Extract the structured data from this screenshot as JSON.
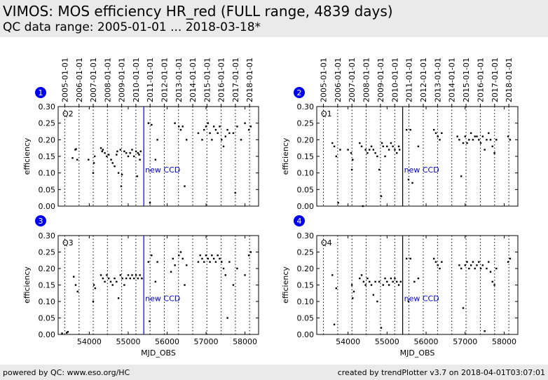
{
  "header": {
    "title": "VIMOS: MOS efficiency HR_red (FULL range, 4839 days)",
    "subtitle": "QC data range: 2005-01-01 ... 2018-03-18*"
  },
  "footer": {
    "left": "powered by QC: www.eso.org/HC",
    "right": "created by trendPlotter v3.7 on 2018-04-01T03:07:01"
  },
  "colors": {
    "points": "#000000",
    "marker": "#0000cc",
    "badge": "#0000ee",
    "panel_bg": "#ffffff"
  },
  "chart_data": {
    "type": "scatter",
    "xlabel": "MJD_OBS",
    "ylabel": "efficiency",
    "xlim": [
      53200,
      58350
    ],
    "ylim": [
      0.0,
      0.3
    ],
    "xticks": [
      54000,
      55000,
      56000,
      57000,
      58000
    ],
    "yticks": [
      "0.00",
      "0.05",
      "0.10",
      "0.15",
      "0.20",
      "0.25",
      "0.30"
    ],
    "year_ticks": [
      {
        "label": "2005-01-01",
        "mjd": 53371
      },
      {
        "label": "2006-01-01",
        "mjd": 53736
      },
      {
        "label": "2007-01-01",
        "mjd": 54101
      },
      {
        "label": "2008-01-01",
        "mjd": 54466
      },
      {
        "label": "2009-01-01",
        "mjd": 54832
      },
      {
        "label": "2010-01-01",
        "mjd": 55197
      },
      {
        "label": "2011-01-01",
        "mjd": 55562
      },
      {
        "label": "2012-01-01",
        "mjd": 55927
      },
      {
        "label": "2013-01-01",
        "mjd": 56293
      },
      {
        "label": "2014-01-01",
        "mjd": 56658
      },
      {
        "label": "2015-01-01",
        "mjd": 57023
      },
      {
        "label": "2016-01-01",
        "mjd": 57388
      },
      {
        "label": "2017-01-01",
        "mjd": 57754
      },
      {
        "label": "2018-01-01",
        "mjd": 58119
      }
    ],
    "marker_line": {
      "mjd": 55400,
      "label": "new CCD"
    },
    "panels": [
      {
        "badge": "1",
        "quadrant": "Q2",
        "points": [
          [
            53570,
            0.145
          ],
          [
            53640,
            0.17
          ],
          [
            53660,
            0.172
          ],
          [
            53690,
            0.14
          ],
          [
            53980,
            0.14
          ],
          [
            54100,
            0.1
          ],
          [
            54120,
            0.13
          ],
          [
            54140,
            0.15
          ],
          [
            54300,
            0.175
          ],
          [
            54330,
            0.165
          ],
          [
            54350,
            0.17
          ],
          [
            54400,
            0.16
          ],
          [
            54450,
            0.15
          ],
          [
            54500,
            0.155
          ],
          [
            54560,
            0.14
          ],
          [
            54600,
            0.13
          ],
          [
            54650,
            0.12
          ],
          [
            54700,
            0.155
          ],
          [
            54720,
            0.165
          ],
          [
            54750,
            0.1
          ],
          [
            54800,
            0.17
          ],
          [
            54820,
            0.06
          ],
          [
            54840,
            0.095
          ],
          [
            54900,
            0.165
          ],
          [
            54950,
            0.16
          ],
          [
            55000,
            0.15
          ],
          [
            55050,
            0.16
          ],
          [
            55100,
            0.17
          ],
          [
            55150,
            0.15
          ],
          [
            55200,
            0.165
          ],
          [
            55230,
            0.09
          ],
          [
            55250,
            0.16
          ],
          [
            55280,
            0.155
          ],
          [
            55300,
            0.14
          ],
          [
            55320,
            0.165
          ],
          [
            55520,
            0.25
          ],
          [
            55560,
            0.01
          ],
          [
            55600,
            0.245
          ],
          [
            55700,
            0.14
          ],
          [
            55750,
            0.2
          ],
          [
            56200,
            0.25
          ],
          [
            56300,
            0.24
          ],
          [
            56350,
            0.23
          ],
          [
            56400,
            0.24
          ],
          [
            56450,
            0.06
          ],
          [
            56500,
            0.2
          ],
          [
            56800,
            0.22
          ],
          [
            56900,
            0.2
          ],
          [
            56950,
            0.23
          ],
          [
            57000,
            0.24
          ],
          [
            57050,
            0.25
          ],
          [
            57100,
            0.22
          ],
          [
            57150,
            0.2
          ],
          [
            57200,
            0.24
          ],
          [
            57250,
            0.23
          ],
          [
            57300,
            0.22
          ],
          [
            57350,
            0.24
          ],
          [
            57400,
            0.2
          ],
          [
            57450,
            0.18
          ],
          [
            57500,
            0.21
          ],
          [
            57550,
            0.23
          ],
          [
            57600,
            0.22
          ],
          [
            57700,
            0.22
          ],
          [
            57750,
            0.04
          ],
          [
            57800,
            0.24
          ],
          [
            57900,
            0.2
          ],
          [
            58000,
            0.25
          ],
          [
            58100,
            0.23
          ],
          [
            58150,
            0.24
          ]
        ]
      },
      {
        "badge": "2",
        "quadrant": "Q1",
        "points": [
          [
            53600,
            0.19
          ],
          [
            53650,
            0.18
          ],
          [
            53700,
            0.15
          ],
          [
            53750,
            0.01
          ],
          [
            53800,
            0.17
          ],
          [
            54000,
            0.17
          ],
          [
            54080,
            0.16
          ],
          [
            54100,
            0.11
          ],
          [
            54120,
            0.14
          ],
          [
            54300,
            0.19
          ],
          [
            54350,
            0.18
          ],
          [
            54380,
            0.0
          ],
          [
            54450,
            0.17
          ],
          [
            54500,
            0.16
          ],
          [
            54550,
            0.17
          ],
          [
            54600,
            0.18
          ],
          [
            54650,
            0.17
          ],
          [
            54700,
            0.16
          ],
          [
            54750,
            0.15
          ],
          [
            54800,
            0.11
          ],
          [
            54850,
            0.03
          ],
          [
            54870,
            0.19
          ],
          [
            54900,
            0.18
          ],
          [
            54950,
            0.15
          ],
          [
            55000,
            0.18
          ],
          [
            55050,
            0.17
          ],
          [
            55100,
            0.19
          ],
          [
            55150,
            0.18
          ],
          [
            55200,
            0.17
          ],
          [
            55250,
            0.16
          ],
          [
            55300,
            0.18
          ],
          [
            55320,
            0.17
          ],
          [
            55500,
            0.23
          ],
          [
            55550,
            0.08
          ],
          [
            55600,
            0.23
          ],
          [
            55650,
            0.07
          ],
          [
            55800,
            0.18
          ],
          [
            56200,
            0.23
          ],
          [
            56250,
            0.22
          ],
          [
            56300,
            0.21
          ],
          [
            56350,
            0.2
          ],
          [
            56400,
            0.22
          ],
          [
            56800,
            0.21
          ],
          [
            56850,
            0.2
          ],
          [
            56900,
            0.09
          ],
          [
            56950,
            0.19
          ],
          [
            57000,
            0.21
          ],
          [
            57050,
            0.19
          ],
          [
            57100,
            0.2
          ],
          [
            57150,
            0.22
          ],
          [
            57200,
            0.2
          ],
          [
            57250,
            0.21
          ],
          [
            57300,
            0.21
          ],
          [
            57350,
            0.2
          ],
          [
            57400,
            0.19
          ],
          [
            57450,
            0.21
          ],
          [
            57500,
            0.17
          ],
          [
            57550,
            0.2
          ],
          [
            57600,
            0.22
          ],
          [
            57650,
            0.2
          ],
          [
            57700,
            0.18
          ],
          [
            57750,
            0.16
          ],
          [
            57800,
            0.2
          ],
          [
            58100,
            0.21
          ],
          [
            58150,
            0.2
          ]
        ]
      },
      {
        "badge": "3",
        "quadrant": "Q3",
        "points": [
          [
            53300,
            0.003
          ],
          [
            53420,
            0.005
          ],
          [
            53450,
            0.008
          ],
          [
            53600,
            0.175
          ],
          [
            53650,
            0.15
          ],
          [
            53700,
            0.13
          ],
          [
            54100,
            0.1
          ],
          [
            54120,
            0.15
          ],
          [
            54150,
            0.14
          ],
          [
            54300,
            0.18
          ],
          [
            54350,
            0.17
          ],
          [
            54400,
            0.16
          ],
          [
            54450,
            0.18
          ],
          [
            54500,
            0.17
          ],
          [
            54550,
            0.16
          ],
          [
            54600,
            0.15
          ],
          [
            54650,
            0.17
          ],
          [
            54700,
            0.16
          ],
          [
            54750,
            0.11
          ],
          [
            54800,
            0.18
          ],
          [
            54850,
            0.17
          ],
          [
            54900,
            0.15
          ],
          [
            54950,
            0.17
          ],
          [
            55000,
            0.18
          ],
          [
            55050,
            0.17
          ],
          [
            55100,
            0.18
          ],
          [
            55150,
            0.17
          ],
          [
            55200,
            0.18
          ],
          [
            55250,
            0.17
          ],
          [
            55300,
            0.18
          ],
          [
            55350,
            0.17
          ],
          [
            55520,
            0.22
          ],
          [
            55550,
            0.04
          ],
          [
            55600,
            0.24
          ],
          [
            55700,
            0.16
          ],
          [
            55750,
            0.22
          ],
          [
            56100,
            0.19
          ],
          [
            56150,
            0.23
          ],
          [
            56200,
            0.21
          ],
          [
            56300,
            0.24
          ],
          [
            56350,
            0.25
          ],
          [
            56400,
            0.23
          ],
          [
            56450,
            0.15
          ],
          [
            56500,
            0.21
          ],
          [
            56800,
            0.22
          ],
          [
            56850,
            0.24
          ],
          [
            56900,
            0.23
          ],
          [
            56950,
            0.22
          ],
          [
            57000,
            0.24
          ],
          [
            57050,
            0.23
          ],
          [
            57100,
            0.22
          ],
          [
            57150,
            0.24
          ],
          [
            57200,
            0.23
          ],
          [
            57250,
            0.22
          ],
          [
            57300,
            0.24
          ],
          [
            57350,
            0.23
          ],
          [
            57400,
            0.22
          ],
          [
            57450,
            0.2
          ],
          [
            57500,
            0.18
          ],
          [
            57550,
            0.05
          ],
          [
            57600,
            0.22
          ],
          [
            57700,
            0.15
          ],
          [
            57800,
            0.2
          ],
          [
            58000,
            0.18
          ],
          [
            58100,
            0.24
          ],
          [
            58150,
            0.25
          ]
        ]
      },
      {
        "badge": "4",
        "quadrant": "Q4",
        "points": [
          [
            53600,
            0.18
          ],
          [
            53650,
            0.03
          ],
          [
            53700,
            0.14
          ],
          [
            54100,
            0.15
          ],
          [
            54120,
            0.11
          ],
          [
            54150,
            0.13
          ],
          [
            54300,
            0.17
          ],
          [
            54350,
            0.18
          ],
          [
            54400,
            0.16
          ],
          [
            54450,
            0.15
          ],
          [
            54500,
            0.17
          ],
          [
            54550,
            0.16
          ],
          [
            54600,
            0.15
          ],
          [
            54650,
            0.12
          ],
          [
            54700,
            0.16
          ],
          [
            54750,
            0.1
          ],
          [
            54800,
            0.16
          ],
          [
            54850,
            0.02
          ],
          [
            54900,
            0.15
          ],
          [
            54950,
            0.17
          ],
          [
            55000,
            0.16
          ],
          [
            55050,
            0.15
          ],
          [
            55100,
            0.17
          ],
          [
            55150,
            0.16
          ],
          [
            55200,
            0.17
          ],
          [
            55250,
            0.16
          ],
          [
            55300,
            0.15
          ],
          [
            55350,
            0.16
          ],
          [
            55500,
            0.23
          ],
          [
            55550,
            0.1
          ],
          [
            55600,
            0.23
          ],
          [
            55700,
            0.16
          ],
          [
            55800,
            0.17
          ],
          [
            56200,
            0.23
          ],
          [
            56250,
            0.22
          ],
          [
            56300,
            0.21
          ],
          [
            56350,
            0.2
          ],
          [
            56400,
            0.22
          ],
          [
            56850,
            0.21
          ],
          [
            56900,
            0.2
          ],
          [
            56950,
            0.08
          ],
          [
            57000,
            0.21
          ],
          [
            57050,
            0.22
          ],
          [
            57100,
            0.2
          ],
          [
            57150,
            0.21
          ],
          [
            57200,
            0.22
          ],
          [
            57250,
            0.2
          ],
          [
            57300,
            0.21
          ],
          [
            57350,
            0.22
          ],
          [
            57400,
            0.2
          ],
          [
            57450,
            0.21
          ],
          [
            57500,
            0.01
          ],
          [
            57550,
            0.2
          ],
          [
            57600,
            0.22
          ],
          [
            57650,
            0.19
          ],
          [
            57700,
            0.16
          ],
          [
            57750,
            0.15
          ],
          [
            57800,
            0.2
          ],
          [
            58100,
            0.22
          ],
          [
            58150,
            0.23
          ]
        ]
      }
    ]
  }
}
